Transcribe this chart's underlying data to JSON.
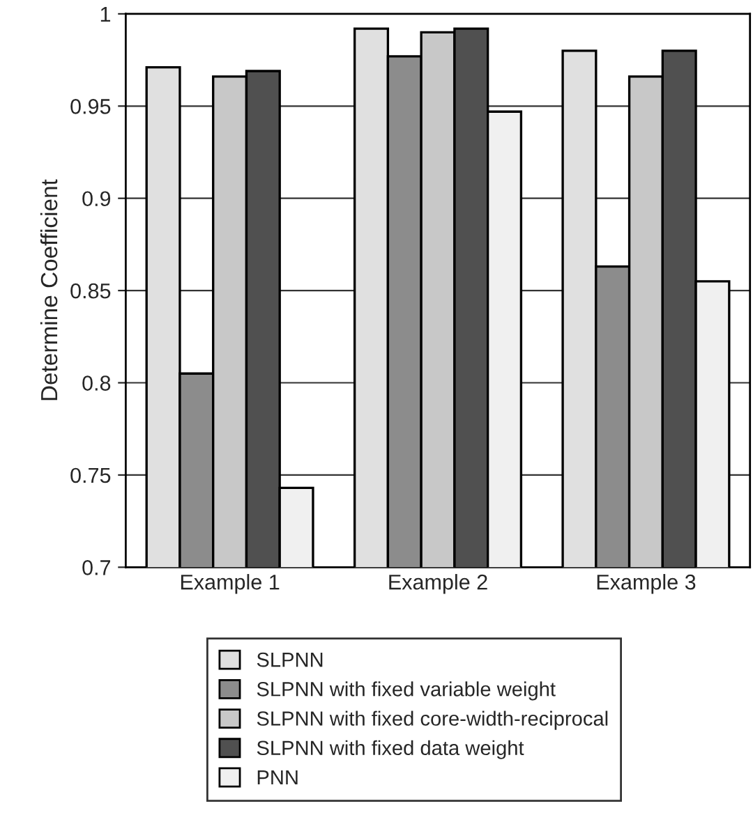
{
  "chart_data": {
    "type": "bar",
    "ylabel": "Determine Coefficient",
    "categories": [
      "Example 1",
      "Example 2",
      "Example 3"
    ],
    "series": [
      {
        "name": "SLPNN",
        "color": "#e0e0e0",
        "values": [
          0.971,
          0.992,
          0.98
        ]
      },
      {
        "name": "SLPNN with fixed variable weight",
        "color": "#8c8c8c",
        "values": [
          0.805,
          0.977,
          0.863
        ]
      },
      {
        "name": "SLPNN with fixed core-width-reciprocal",
        "color": "#c8c8c8",
        "values": [
          0.966,
          0.99,
          0.966
        ]
      },
      {
        "name": "SLPNN with fixed data weight",
        "color": "#505050",
        "values": [
          0.969,
          0.992,
          0.98
        ]
      },
      {
        "name": "PNN",
        "color": "#f0f0f0",
        "values": [
          0.743,
          0.947,
          0.855
        ]
      }
    ],
    "ylim": [
      0.7,
      1
    ],
    "yticks": [
      0.7,
      0.75,
      0.8,
      0.85,
      0.9,
      0.95,
      1
    ],
    "grid": "y",
    "legend": "bottom"
  }
}
